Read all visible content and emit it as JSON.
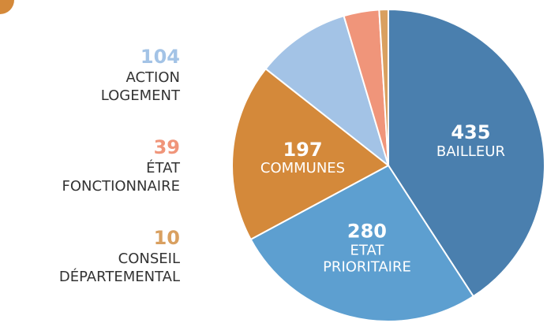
{
  "chart_data": {
    "type": "pie",
    "categories": [
      "BAILLEUR",
      "ETAT PRIORITAIRE",
      "COMMUNES",
      "ACTION LOGEMENT",
      "ÉTAT FONCTIONNAIRE",
      "CONSEIL DÉPARTEMENTAL"
    ],
    "values": [
      435,
      280,
      197,
      104,
      39,
      10
    ],
    "colors": [
      "#4a7fae",
      "#5d9fd0",
      "#d4893a",
      "#a3c3e6",
      "#f0957a",
      "#d9a060"
    ]
  }
}
